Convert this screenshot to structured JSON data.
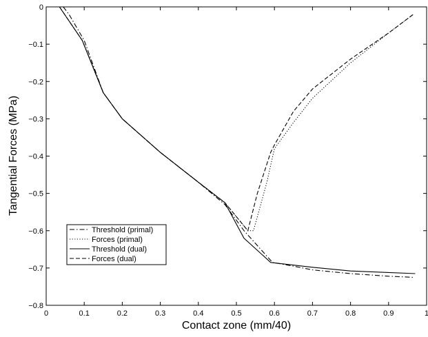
{
  "chart_data": {
    "type": "line",
    "title": "",
    "xlabel": "Contact zone (mm/40)",
    "ylabel": "Tangential Forces (MPa)",
    "xlim": [
      0,
      1
    ],
    "ylim": [
      -0.8,
      0
    ],
    "xticks": [
      0,
      0.1,
      0.2,
      0.3,
      0.4,
      0.5,
      0.6,
      0.7,
      0.8,
      0.9,
      1
    ],
    "xtick_labels": [
      "0",
      "0.1",
      "0.2",
      "0.3",
      "0.4",
      "0.5",
      "0.6",
      "0.7",
      "0.8",
      "0.9",
      "1"
    ],
    "yticks": [
      0,
      -0.1,
      -0.2,
      -0.3,
      -0.4,
      -0.5,
      -0.6,
      -0.7,
      -0.8
    ],
    "ytick_labels": [
      "0",
      "−0.1",
      "−0.2",
      "−0.3",
      "−0.4",
      "−0.5",
      "−0.6",
      "−0.7",
      "−0.8"
    ],
    "grid": false,
    "legend_position": "bottom-left",
    "series": [
      {
        "name": "Threshold (primal)",
        "dash": "dashdot",
        "color": "#000000",
        "x": [
          0.045,
          0.06,
          0.1,
          0.15,
          0.2,
          0.3,
          0.4,
          0.47,
          0.52,
          0.595,
          0.65,
          0.7,
          0.8,
          0.9,
          0.965
        ],
        "y": [
          0,
          -0.02,
          -0.09,
          -0.23,
          -0.3,
          -0.39,
          -0.47,
          -0.53,
          -0.6,
          -0.685,
          -0.695,
          -0.705,
          -0.715,
          -0.722,
          -0.725
        ]
      },
      {
        "name": "Forces (primal)",
        "dash": "dotted",
        "color": "#000000",
        "x": [
          0.035,
          0.095,
          0.15,
          0.2,
          0.3,
          0.4,
          0.47,
          0.53,
          0.545,
          0.58,
          0.6,
          0.65,
          0.7,
          0.8,
          0.9,
          0.965
        ],
        "y": [
          0,
          -0.09,
          -0.23,
          -0.3,
          -0.39,
          -0.47,
          -0.525,
          -0.6,
          -0.6,
          -0.47,
          -0.38,
          -0.31,
          -0.245,
          -0.15,
          -0.07,
          -0.02
        ]
      },
      {
        "name": "Threshold (dual)",
        "dash": "solid",
        "color": "#000000",
        "x": [
          0.035,
          0.095,
          0.15,
          0.2,
          0.3,
          0.4,
          0.47,
          0.52,
          0.59,
          0.7,
          0.8,
          0.9,
          0.97
        ],
        "y": [
          0,
          -0.09,
          -0.23,
          -0.3,
          -0.39,
          -0.47,
          -0.525,
          -0.62,
          -0.685,
          -0.698,
          -0.708,
          -0.712,
          -0.715
        ]
      },
      {
        "name": "Forces (dual)",
        "dash": "dashed",
        "color": "#000000",
        "x": [
          0.035,
          0.095,
          0.15,
          0.2,
          0.3,
          0.4,
          0.47,
          0.53,
          0.555,
          0.59,
          0.6,
          0.65,
          0.7,
          0.8,
          0.9,
          0.965
        ],
        "y": [
          0,
          -0.09,
          -0.23,
          -0.3,
          -0.39,
          -0.47,
          -0.525,
          -0.6,
          -0.5,
          -0.39,
          -0.37,
          -0.28,
          -0.22,
          -0.14,
          -0.07,
          -0.02
        ]
      }
    ]
  }
}
